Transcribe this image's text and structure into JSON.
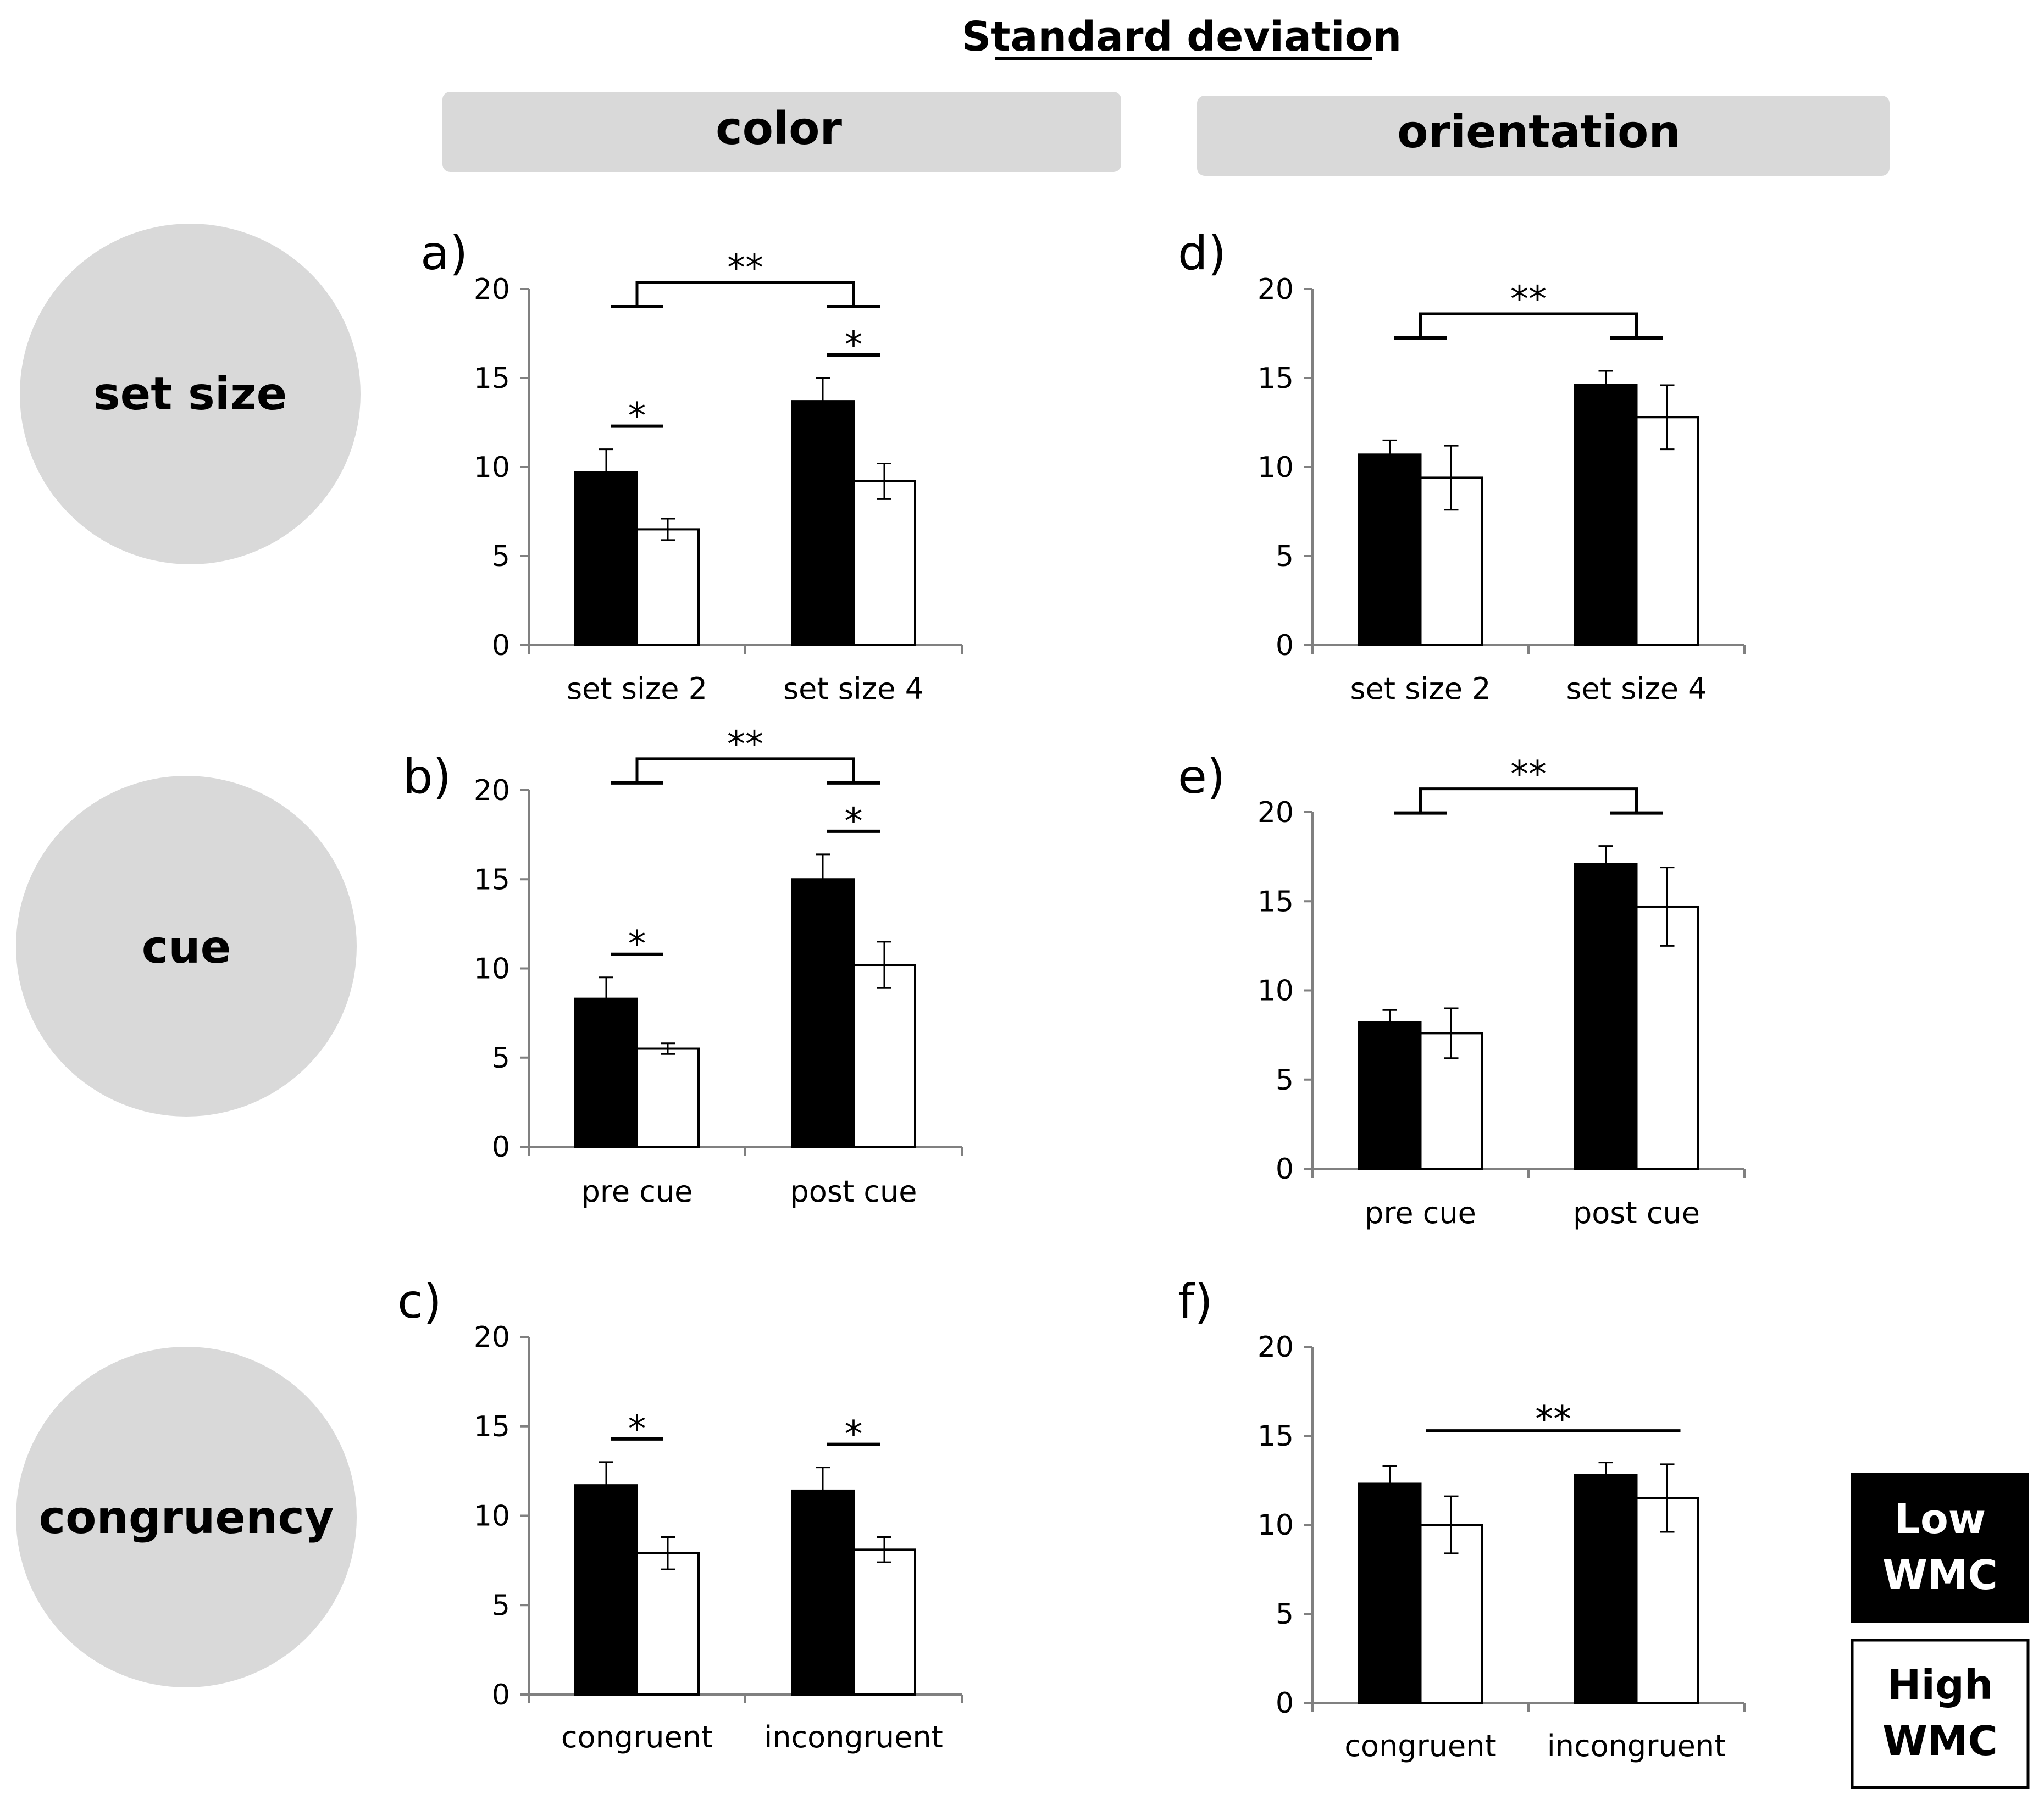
{
  "figure_title": "Standard deviation",
  "column_headers": [
    "color",
    "orientation"
  ],
  "row_labels": [
    "set size",
    "cue",
    "congruency"
  ],
  "legend": {
    "low": {
      "line1": "Low",
      "line2": "WMC",
      "fill": "#000000"
    },
    "high": {
      "line1": "High",
      "line2": "WMC",
      "fill": "#ffffff"
    }
  },
  "colors": {
    "panel_bg": "#d9d9d9",
    "low_bar": "#000000",
    "high_bar": "#ffffff",
    "axis": "#808080"
  },
  "chart_data": [
    {
      "id": "a",
      "label": "a)",
      "type": "bar",
      "column": "color",
      "row": "set size",
      "categories": [
        "set size 2",
        "set size 4"
      ],
      "ylim": [
        0,
        20
      ],
      "yticks": [
        0,
        5,
        10,
        15,
        20
      ],
      "series": [
        {
          "name": "Low WMC",
          "values": [
            9.7,
            13.7
          ],
          "errors": [
            1.3,
            1.3
          ]
        },
        {
          "name": "High WMC",
          "values": [
            6.5,
            9.2
          ],
          "errors": [
            0.6,
            1.0
          ]
        }
      ],
      "annotations": [
        {
          "kind": "pair",
          "category": 0,
          "text": "*"
        },
        {
          "kind": "pair",
          "category": 1,
          "text": "*"
        },
        {
          "kind": "main",
          "text": "**"
        }
      ]
    },
    {
      "id": "b",
      "label": "b)",
      "type": "bar",
      "column": "color",
      "row": "cue",
      "categories": [
        "pre cue",
        "post cue"
      ],
      "ylim": [
        0,
        20
      ],
      "yticks": [
        0,
        5,
        10,
        15,
        20
      ],
      "series": [
        {
          "name": "Low WMC",
          "values": [
            8.3,
            15.0
          ],
          "errors": [
            1.2,
            1.4
          ]
        },
        {
          "name": "High WMC",
          "values": [
            5.5,
            10.2
          ],
          "errors": [
            0.3,
            1.3
          ]
        }
      ],
      "annotations": [
        {
          "kind": "pair",
          "category": 0,
          "text": "*"
        },
        {
          "kind": "pair",
          "category": 1,
          "text": "*"
        },
        {
          "kind": "main",
          "text": "**"
        }
      ]
    },
    {
      "id": "c",
      "label": "c)",
      "type": "bar",
      "column": "color",
      "row": "congruency",
      "categories": [
        "congruent",
        "incongruent"
      ],
      "ylim": [
        0,
        20
      ],
      "yticks": [
        0,
        5,
        10,
        15,
        20
      ],
      "series": [
        {
          "name": "Low WMC",
          "values": [
            11.7,
            11.4
          ],
          "errors": [
            1.3,
            1.3
          ]
        },
        {
          "name": "High WMC",
          "values": [
            7.9,
            8.1
          ],
          "errors": [
            0.9,
            0.7
          ]
        }
      ],
      "annotations": [
        {
          "kind": "pair",
          "category": 0,
          "text": "*"
        },
        {
          "kind": "pair",
          "category": 1,
          "text": "*"
        }
      ]
    },
    {
      "id": "d",
      "label": "d)",
      "type": "bar",
      "column": "orientation",
      "row": "set size",
      "categories": [
        "set size 2",
        "set size 4"
      ],
      "ylim": [
        0,
        20
      ],
      "yticks": [
        0,
        5,
        10,
        15,
        20
      ],
      "series": [
        {
          "name": "Low WMC",
          "values": [
            10.7,
            14.6
          ],
          "errors": [
            0.8,
            0.8
          ]
        },
        {
          "name": "High WMC",
          "values": [
            9.4,
            12.8
          ],
          "errors": [
            1.8,
            1.8
          ]
        }
      ],
      "annotations": [
        {
          "kind": "main",
          "text": "**"
        }
      ]
    },
    {
      "id": "e",
      "label": "e)",
      "type": "bar",
      "column": "orientation",
      "row": "cue",
      "categories": [
        "pre cue",
        "post cue"
      ],
      "ylim": [
        0,
        20
      ],
      "yticks": [
        0,
        5,
        10,
        15,
        20
      ],
      "series": [
        {
          "name": "Low WMC",
          "values": [
            8.2,
            17.1
          ],
          "errors": [
            0.7,
            1.0
          ]
        },
        {
          "name": "High WMC",
          "values": [
            7.6,
            14.7
          ],
          "errors": [
            1.4,
            2.2
          ]
        }
      ],
      "annotations": [
        {
          "kind": "main",
          "text": "**"
        }
      ]
    },
    {
      "id": "f",
      "label": "f)",
      "type": "bar",
      "column": "orientation",
      "row": "congruency",
      "categories": [
        "congruent",
        "incongruent"
      ],
      "ylim": [
        0,
        20
      ],
      "yticks": [
        0,
        5,
        10,
        15,
        20
      ],
      "series": [
        {
          "name": "Low WMC",
          "values": [
            12.3,
            12.8
          ],
          "errors": [
            1.0,
            0.7
          ]
        },
        {
          "name": "High WMC",
          "values": [
            10.0,
            11.5
          ],
          "errors": [
            1.6,
            1.9
          ]
        }
      ],
      "annotations": [
        {
          "kind": "line",
          "text": "**"
        }
      ]
    }
  ]
}
